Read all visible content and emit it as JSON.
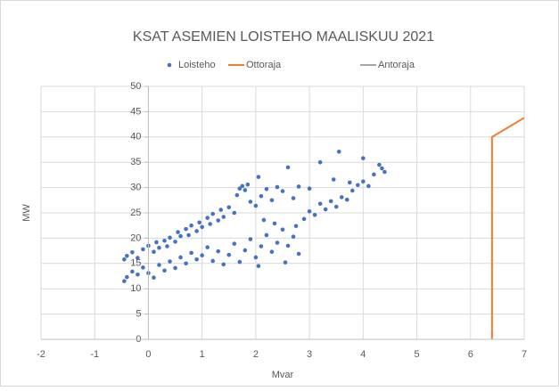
{
  "chart_data": {
    "type": "scatter",
    "title": "KSAT ASEMIEN LOISTEHO MAALISKUU 2021",
    "x_label": "Mvar",
    "y_label": "MW",
    "xlim": [
      -2,
      7
    ],
    "xticks": [
      -2,
      -1,
      0,
      1,
      2,
      3,
      4,
      5,
      6,
      7
    ],
    "ylim": [
      0,
      50
    ],
    "yticks": [
      0,
      5,
      10,
      15,
      20,
      25,
      30,
      35,
      40,
      45,
      50
    ],
    "grid": true,
    "legend": "top",
    "series": [
      {
        "name": "Loisteho",
        "color": "#4472c4",
        "kind": "markers",
        "x": [
          -0.45,
          -0.4,
          -0.3,
          -0.2,
          -0.1,
          0,
          0.1,
          0.15,
          0.2,
          0.3,
          0.35,
          0.4,
          0.5,
          0.55,
          0.6,
          0.7,
          0.75,
          0.8,
          0.9,
          0.95,
          1.0,
          1.1,
          1.15,
          1.2,
          1.3,
          1.35,
          1.4,
          1.5,
          1.6,
          1.65,
          1.7,
          1.75,
          1.8,
          1.85,
          1.9,
          2.0,
          2.05,
          2.1,
          2.2,
          2.3,
          2.4,
          2.5,
          2.6,
          2.7,
          2.8,
          -0.45,
          -0.4,
          -0.3,
          -0.2,
          -0.1,
          0,
          0.1,
          0.2,
          0.3,
          0.4,
          0.5,
          0.6,
          0.7,
          0.8,
          0.9,
          1.0,
          1.1,
          1.2,
          1.3,
          1.4,
          1.5,
          1.6,
          1.7,
          1.8,
          1.9,
          2.0,
          2.05,
          2.1,
          2.2,
          2.3,
          2.4,
          2.5,
          2.6,
          2.7,
          2.8,
          2.55,
          2.75,
          2.35,
          2.15,
          2.9,
          3.0,
          3.1,
          3.2,
          3.3,
          3.4,
          3.5,
          3.6,
          3.7,
          3.8,
          3.9,
          4.0,
          4.1,
          4.2,
          4.3,
          4.35,
          4.4,
          3.2,
          3.55,
          4.0,
          3.45,
          3.0,
          3.75
        ],
        "y": [
          15.8,
          16.5,
          17.2,
          16.1,
          17.8,
          18.5,
          17.3,
          19.2,
          18.1,
          19.5,
          18.4,
          20.1,
          19.3,
          21.2,
          20.4,
          21.8,
          20.6,
          22.5,
          21.4,
          23.1,
          22.2,
          24.0,
          22.8,
          24.8,
          23.5,
          25.6,
          24.2,
          26.1,
          25.0,
          28.5,
          29.8,
          30.3,
          29.5,
          30.6,
          27.2,
          26.4,
          32.1,
          28.3,
          29.7,
          27.5,
          30.1,
          29.3,
          34.0,
          27.9,
          30.2,
          11.5,
          12.3,
          13.4,
          12.8,
          14.2,
          13.1,
          12.2,
          14.7,
          13.6,
          15.4,
          14.1,
          16.2,
          15.0,
          17.1,
          15.8,
          16.6,
          18.2,
          15.5,
          17.4,
          14.8,
          16.7,
          18.9,
          15.3,
          17.6,
          19.8,
          16.2,
          14.5,
          18.4,
          20.6,
          17.3,
          19.1,
          21.7,
          18.5,
          20.3,
          16.9,
          15.2,
          22.4,
          22.9,
          23.6,
          23.8,
          25.3,
          24.6,
          26.8,
          25.7,
          27.3,
          26.2,
          28.1,
          27.6,
          29.4,
          30.5,
          31.2,
          30.3,
          32.6,
          34.5,
          33.8,
          33.1,
          35.0,
          37.1,
          35.8,
          31.6,
          29.8,
          31.0
        ]
      },
      {
        "name": "Ottoraja",
        "color": "#ed7d31",
        "kind": "line",
        "x": [
          6.4,
          6.4,
          7
        ],
        "y": [
          0,
          40,
          43.8
        ]
      },
      {
        "name": "Antoraja",
        "color": "#a5a5a5",
        "kind": "line",
        "x": [],
        "y": []
      }
    ]
  }
}
